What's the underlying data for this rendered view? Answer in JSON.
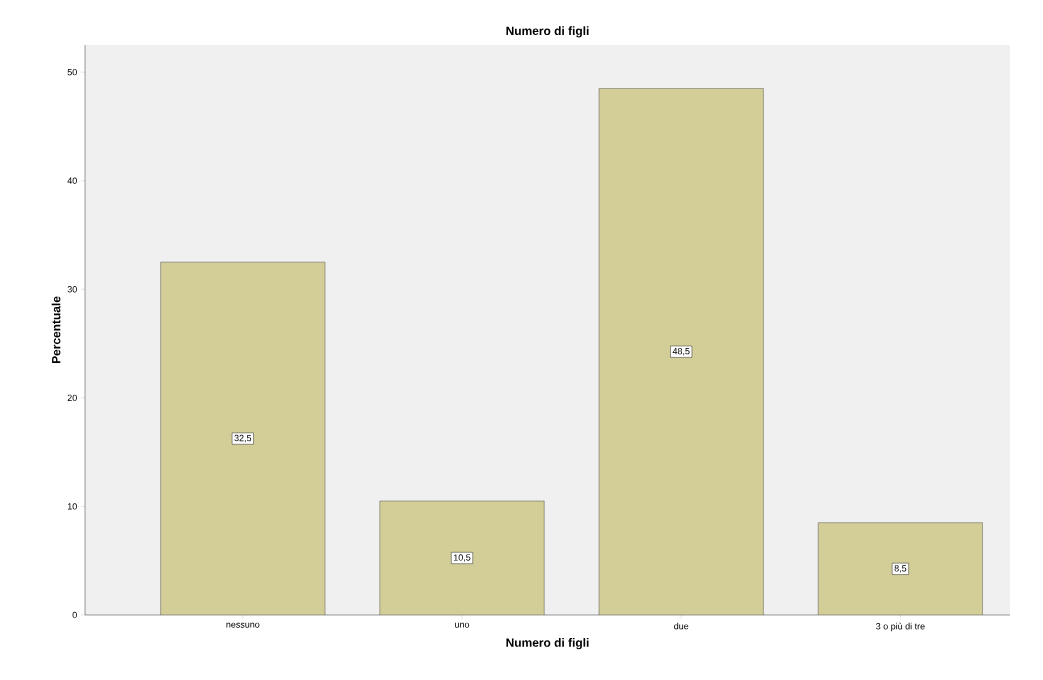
{
  "chart_data": {
    "type": "bar",
    "title": "Numero di figli",
    "xlabel": "Numero di figli",
    "ylabel": "Percentuale",
    "categories": [
      "nessuno",
      "uno",
      "due",
      "3 o più di tre"
    ],
    "values": [
      32.5,
      10.5,
      48.5,
      8.5
    ],
    "value_labels": [
      "32,5",
      "10,5",
      "48,5",
      "8,5"
    ],
    "color": "#d3ce98",
    "ylim": [
      0,
      52.5
    ],
    "yticks": [
      0,
      10,
      20,
      30,
      40,
      50
    ],
    "grid": false
  }
}
